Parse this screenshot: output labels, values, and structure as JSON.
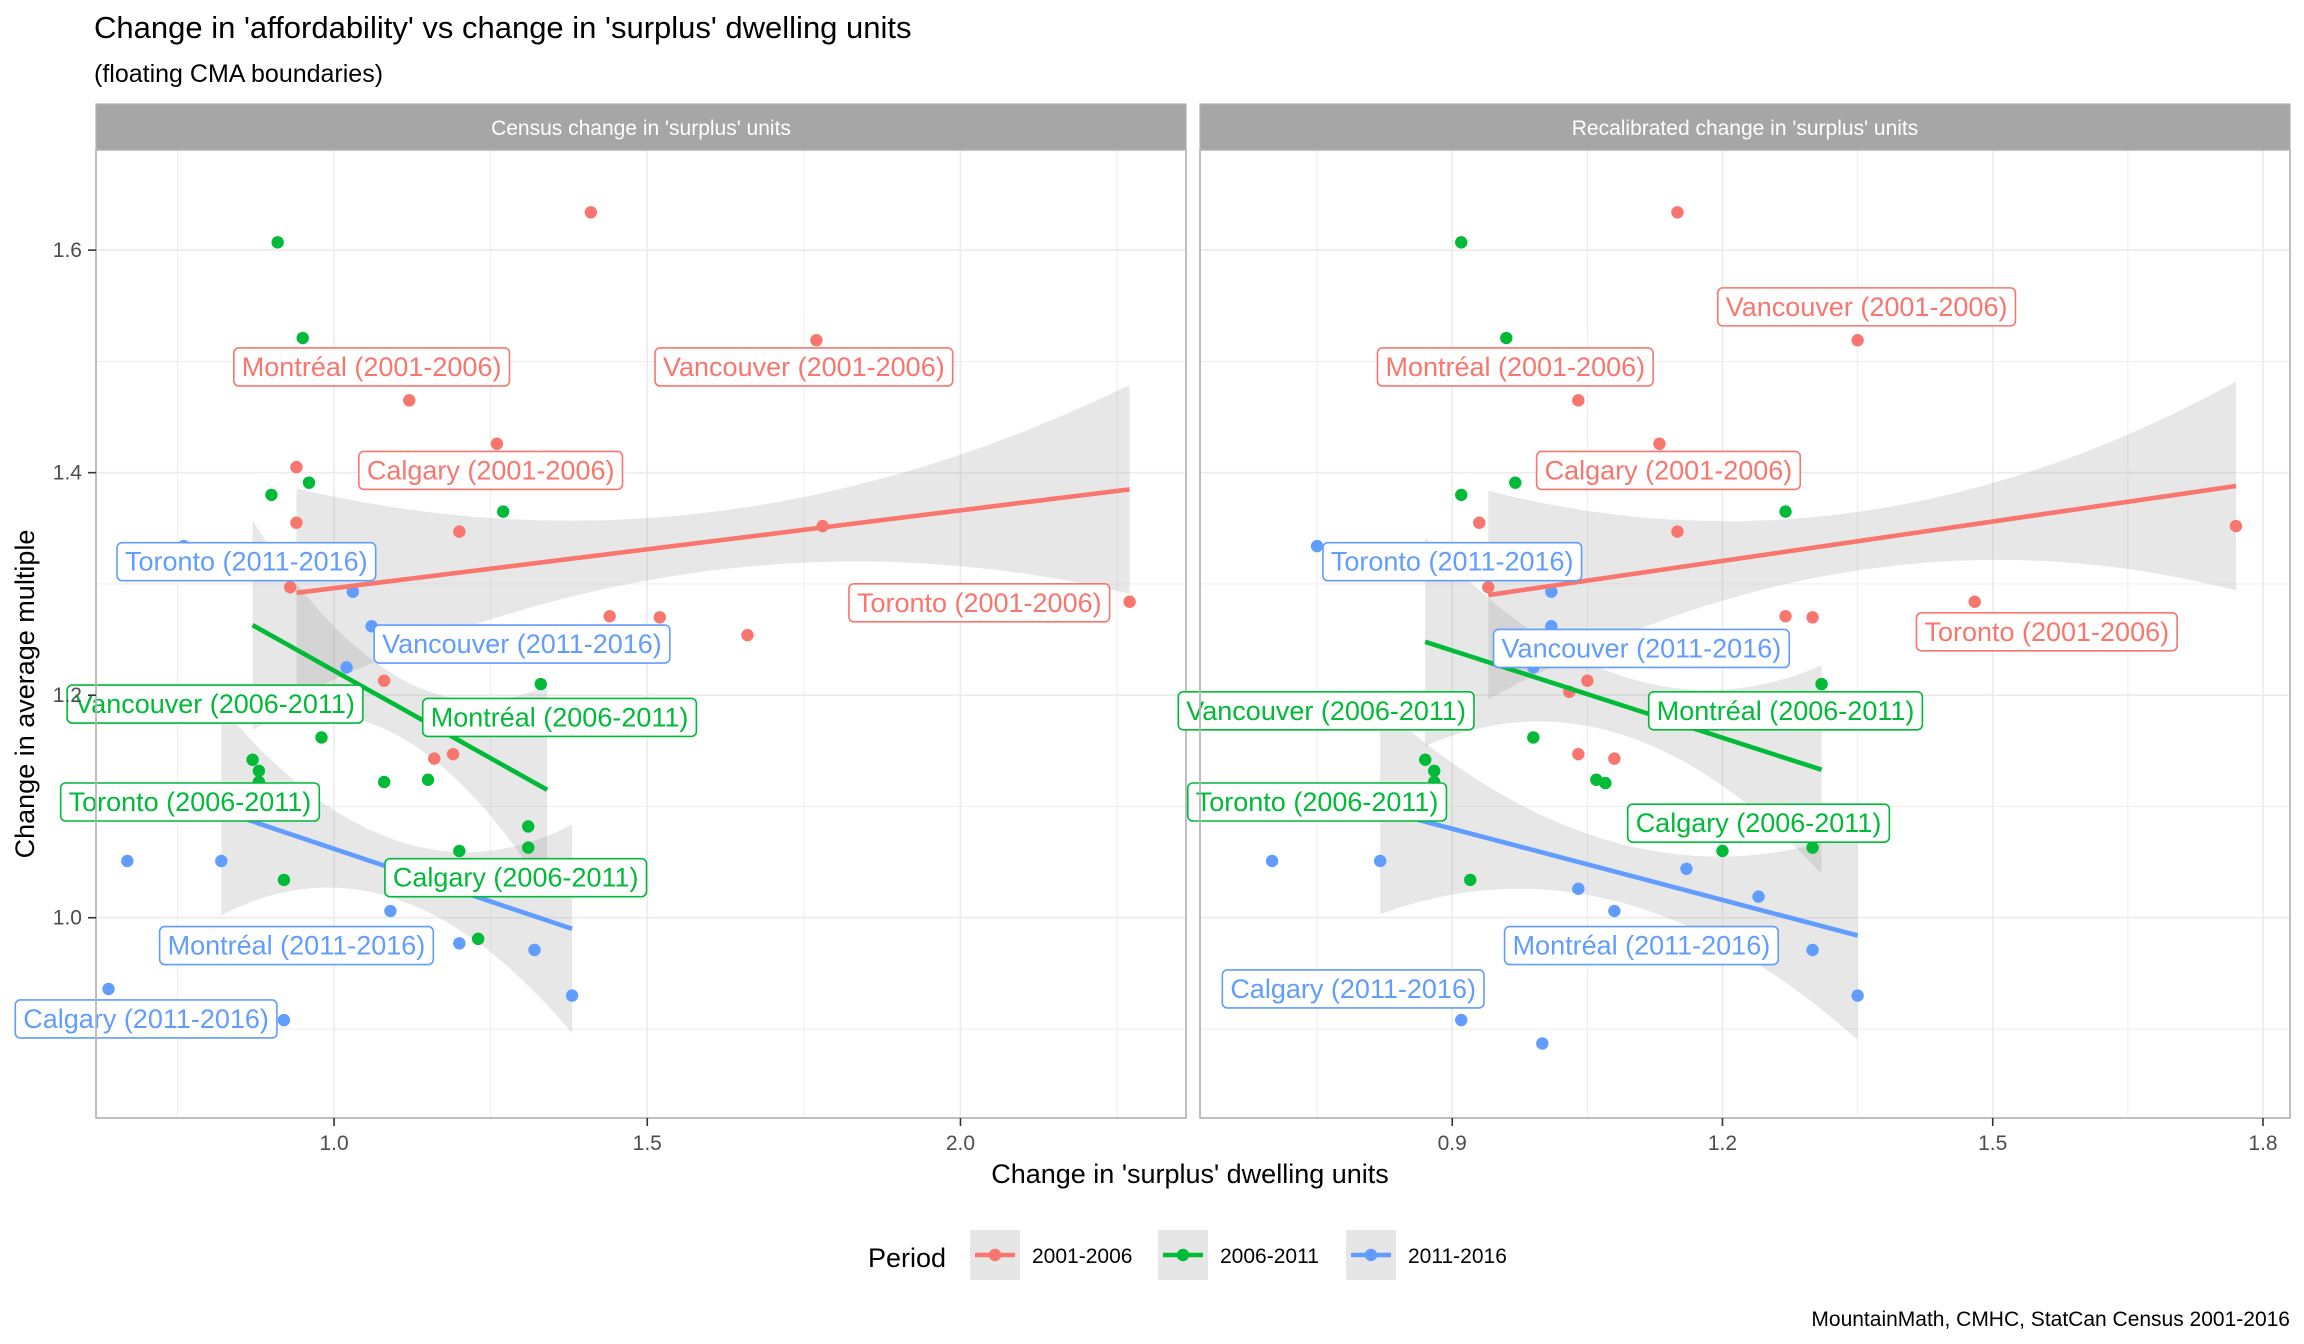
{
  "title": "Change in 'affordability' vs change in 'surplus' dwelling units",
  "subtitle": "(floating CMA boundaries)",
  "xlabel": "Change in 'surplus' dwelling units",
  "ylabel": "Change in average multiple",
  "caption": "MountainMath, CMHC, StatCan Census 2001-2016",
  "legend": {
    "title": "Period",
    "position": "bottom",
    "items": [
      {
        "label": "2001-2006",
        "color": "#F8766D"
      },
      {
        "label": "2006-2011",
        "color": "#00BA38"
      },
      {
        "label": "2011-2016",
        "color": "#619CFF"
      }
    ]
  },
  "chart_data": [
    {
      "type": "scatter",
      "panel_title": "Census change in 'surplus' units",
      "xlim": [
        0.62,
        2.36
      ],
      "ylim": [
        0.82,
        1.69
      ],
      "x_ticks": [
        "1.0",
        "1.5",
        "2.0"
      ],
      "y_ticks": [
        "1.0",
        "1.2",
        "1.4",
        "1.6"
      ],
      "grid": true,
      "series": [
        {
          "name": "2001-2006",
          "color": "#F8766D",
          "points": [
            [
              1.41,
              1.634
            ],
            [
              1.77,
              1.519
            ],
            [
              1.12,
              1.465
            ],
            [
              1.26,
              1.426
            ],
            [
              0.94,
              1.405
            ],
            [
              0.94,
              1.355
            ],
            [
              1.2,
              1.347
            ],
            [
              1.78,
              1.352
            ],
            [
              2.27,
              1.284
            ],
            [
              0.93,
              1.297
            ],
            [
              1.44,
              1.271
            ],
            [
              1.52,
              1.27
            ],
            [
              1.66,
              1.254
            ],
            [
              1.08,
              1.213
            ],
            [
              1.19,
              1.147
            ],
            [
              1.16,
              1.143
            ]
          ],
          "trend": {
            "x": [
              0.94,
              2.27
            ],
            "y": [
              1.292,
              1.385
            ]
          }
        },
        {
          "name": "2006-2011",
          "color": "#00BA38",
          "points": [
            [
              0.91,
              1.607
            ],
            [
              0.95,
              1.521
            ],
            [
              0.96,
              1.391
            ],
            [
              0.9,
              1.38
            ],
            [
              1.27,
              1.365
            ],
            [
              1.33,
              1.21
            ],
            [
              0.98,
              1.162
            ],
            [
              1.15,
              1.176
            ],
            [
              1.15,
              1.124
            ],
            [
              0.87,
              1.142
            ],
            [
              0.88,
              1.132
            ],
            [
              0.88,
              1.122
            ],
            [
              1.31,
              1.082
            ],
            [
              1.31,
              1.063
            ],
            [
              1.2,
              1.06
            ],
            [
              0.92,
              1.034
            ],
            [
              1.23,
              0.981
            ],
            [
              1.08,
              1.122
            ]
          ],
          "trend": {
            "x": [
              0.87,
              1.34
            ],
            "y": [
              1.263,
              1.115
            ]
          }
        },
        {
          "name": "2011-2016",
          "color": "#619CFF",
          "points": [
            [
              0.76,
              1.334
            ],
            [
              1.03,
              1.293
            ],
            [
              1.06,
              1.262
            ],
            [
              1.02,
              1.225
            ],
            [
              0.67,
              1.051
            ],
            [
              0.82,
              1.051
            ],
            [
              1.09,
              1.006
            ],
            [
              1.12,
              0.985
            ],
            [
              1.2,
              0.977
            ],
            [
              1.07,
              0.973
            ],
            [
              1.32,
              0.971
            ],
            [
              0.64,
              0.936
            ],
            [
              1.38,
              0.93
            ],
            [
              0.92,
              0.908
            ]
          ],
          "trend": {
            "x": [
              0.82,
              1.38
            ],
            "y": [
              1.096,
              0.99
            ]
          }
        }
      ],
      "annotations": [
        {
          "text": "Montréal (2001-2006)",
          "series": "2001-2006",
          "x": 1.06,
          "y": 1.495
        },
        {
          "text": "Vancouver (2001-2006)",
          "series": "2001-2006",
          "x": 1.75,
          "y": 1.495
        },
        {
          "text": "Calgary (2001-2006)",
          "series": "2001-2006",
          "x": 1.25,
          "y": 1.402
        },
        {
          "text": "Toronto (2001-2006)",
          "series": "2001-2006",
          "x": 2.03,
          "y": 1.283
        },
        {
          "text": "Toronto (2011-2016)",
          "series": "2011-2016",
          "x": 0.86,
          "y": 1.32
        },
        {
          "text": "Vancouver (2011-2016)",
          "series": "2011-2016",
          "x": 1.3,
          "y": 1.246
        },
        {
          "text": "Vancouver (2006-2011)",
          "series": "2006-2011",
          "x": 0.81,
          "y": 1.192
        },
        {
          "text": "Montréal (2006-2011)",
          "series": "2006-2011",
          "x": 1.36,
          "y": 1.18
        },
        {
          "text": "Toronto (2006-2011)",
          "series": "2006-2011",
          "x": 0.77,
          "y": 1.104
        },
        {
          "text": "Calgary (2006-2011)",
          "series": "2006-2011",
          "x": 1.29,
          "y": 1.036
        },
        {
          "text": "Montréal (2011-2016)",
          "series": "2011-2016",
          "x": 0.94,
          "y": 0.975
        },
        {
          "text": "Calgary (2011-2016)",
          "series": "2011-2016",
          "x": 0.7,
          "y": 0.909
        }
      ]
    },
    {
      "type": "scatter",
      "panel_title": "Recalibrated change in 'surplus' units",
      "xlim": [
        0.62,
        1.83
      ],
      "ylim": [
        0.82,
        1.69
      ],
      "x_ticks": [
        "0.9",
        "1.2",
        "1.5",
        "1.8"
      ],
      "y_ticks": [
        "1.0",
        "1.2",
        "1.4",
        "1.6"
      ],
      "grid": true,
      "series": [
        {
          "name": "2001-2006",
          "color": "#F8766D",
          "points": [
            [
              1.15,
              1.634
            ],
            [
              1.35,
              1.519
            ],
            [
              1.04,
              1.465
            ],
            [
              1.13,
              1.426
            ],
            [
              1.0,
              1.405
            ],
            [
              0.93,
              1.355
            ],
            [
              1.15,
              1.347
            ],
            [
              1.77,
              1.352
            ],
            [
              1.48,
              1.284
            ],
            [
              0.94,
              1.297
            ],
            [
              1.27,
              1.271
            ],
            [
              1.3,
              1.27
            ],
            [
              1.05,
              1.213
            ],
            [
              1.03,
              1.203
            ],
            [
              1.04,
              1.147
            ],
            [
              1.08,
              1.143
            ]
          ],
          "trend": {
            "x": [
              0.94,
              1.77
            ],
            "y": [
              1.29,
              1.388
            ]
          }
        },
        {
          "name": "2006-2011",
          "color": "#00BA38",
          "points": [
            [
              0.91,
              1.607
            ],
            [
              0.96,
              1.521
            ],
            [
              0.97,
              1.391
            ],
            [
              0.91,
              1.38
            ],
            [
              1.27,
              1.365
            ],
            [
              1.31,
              1.21
            ],
            [
              0.99,
              1.162
            ],
            [
              1.13,
              1.198
            ],
            [
              1.14,
              1.176
            ],
            [
              0.87,
              1.142
            ],
            [
              0.88,
              1.132
            ],
            [
              0.88,
              1.122
            ],
            [
              1.06,
              1.124
            ],
            [
              1.07,
              1.121
            ],
            [
              1.3,
              1.063
            ],
            [
              1.2,
              1.06
            ],
            [
              0.92,
              1.034
            ],
            [
              1.07,
              0.981
            ]
          ],
          "trend": {
            "x": [
              0.87,
              1.31
            ],
            "y": [
              1.248,
              1.133
            ]
          }
        },
        {
          "name": "2011-2016",
          "color": "#619CFF",
          "points": [
            [
              0.75,
              1.334
            ],
            [
              1.01,
              1.293
            ],
            [
              1.01,
              1.262
            ],
            [
              0.99,
              1.225
            ],
            [
              0.7,
              1.051
            ],
            [
              0.82,
              1.051
            ],
            [
              1.16,
              1.044
            ],
            [
              1.04,
              1.026
            ],
            [
              1.24,
              1.019
            ],
            [
              1.08,
              1.006
            ],
            [
              1.12,
              0.985
            ],
            [
              1.13,
              0.977
            ],
            [
              1.06,
              0.973
            ],
            [
              1.3,
              0.971
            ],
            [
              1.35,
              0.93
            ],
            [
              0.91,
              0.908
            ],
            [
              1.0,
              0.887
            ]
          ],
          "trend": {
            "x": [
              0.82,
              1.35
            ],
            "y": [
              1.097,
              0.984
            ]
          }
        }
      ],
      "annotations": [
        {
          "text": "Vancouver (2001-2006)",
          "series": "2001-2006",
          "x": 1.36,
          "y": 1.549
        },
        {
          "text": "Montréal (2001-2006)",
          "series": "2001-2006",
          "x": 0.97,
          "y": 1.495
        },
        {
          "text": "Calgary (2001-2006)",
          "series": "2001-2006",
          "x": 1.14,
          "y": 1.402
        },
        {
          "text": "Toronto (2011-2016)",
          "series": "2011-2016",
          "x": 0.9,
          "y": 1.32
        },
        {
          "text": "Toronto (2001-2006)",
          "series": "2001-2006",
          "x": 1.56,
          "y": 1.257
        },
        {
          "text": "Vancouver (2011-2016)",
          "series": "2011-2016",
          "x": 1.11,
          "y": 1.242
        },
        {
          "text": "Vancouver (2006-2011)",
          "series": "2006-2011",
          "x": 0.76,
          "y": 1.186
        },
        {
          "text": "Montréal (2006-2011)",
          "series": "2006-2011",
          "x": 1.27,
          "y": 1.186
        },
        {
          "text": "Toronto (2006-2011)",
          "series": "2006-2011",
          "x": 0.75,
          "y": 1.104
        },
        {
          "text": "Calgary (2006-2011)",
          "series": "2006-2011",
          "x": 1.24,
          "y": 1.085
        },
        {
          "text": "Montréal (2011-2016)",
          "series": "2011-2016",
          "x": 1.11,
          "y": 0.975
        },
        {
          "text": "Calgary (2011-2016)",
          "series": "2011-2016",
          "x": 0.79,
          "y": 0.936
        }
      ]
    }
  ]
}
